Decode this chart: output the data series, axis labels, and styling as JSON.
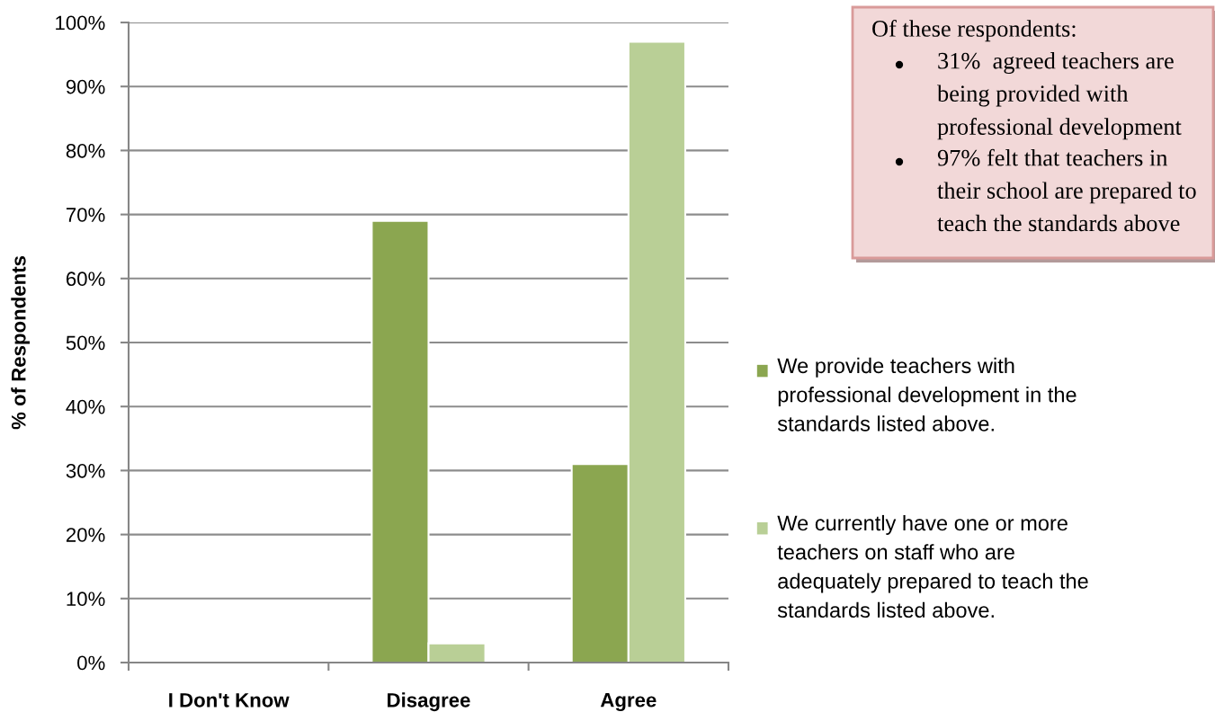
{
  "chart_data": {
    "type": "bar",
    "ylabel": "% of Respondents",
    "categories": [
      "I Don't Know",
      "Disagree",
      "Agree"
    ],
    "series": [
      {
        "name": "We provide teachers with\nprofessional development in the\nstandards listed above.",
        "color": "#8ba650",
        "values": [
          0,
          69,
          31
        ]
      },
      {
        "name": "We currently have one or more\nteachers on staff who are\nadequately prepared to teach the\nstandards listed above.",
        "color": "#b9cf96",
        "values": [
          0,
          3,
          97
        ]
      }
    ],
    "ylim": [
      0,
      100
    ],
    "yticks": [
      {
        "value": 0,
        "label": "0%"
      },
      {
        "value": 10,
        "label": "10%"
      },
      {
        "value": 20,
        "label": "20%"
      },
      {
        "value": 30,
        "label": "30%"
      },
      {
        "value": 40,
        "label": "40%"
      },
      {
        "value": 50,
        "label": "50%"
      },
      {
        "value": 60,
        "label": "60%"
      },
      {
        "value": 70,
        "label": "70%"
      },
      {
        "value": 80,
        "label": "80%"
      },
      {
        "value": 90,
        "label": "90%"
      },
      {
        "value": 100,
        "label": "100%"
      }
    ],
    "grid": "y",
    "legend": "right",
    "annotations": [
      "Of these respondents:",
      "31%  agreed teachers are\nbeing provided with\nprofessional development",
      "97% felt that teachers in\ntheir school are prepared to\nteach the standards above"
    ]
  }
}
